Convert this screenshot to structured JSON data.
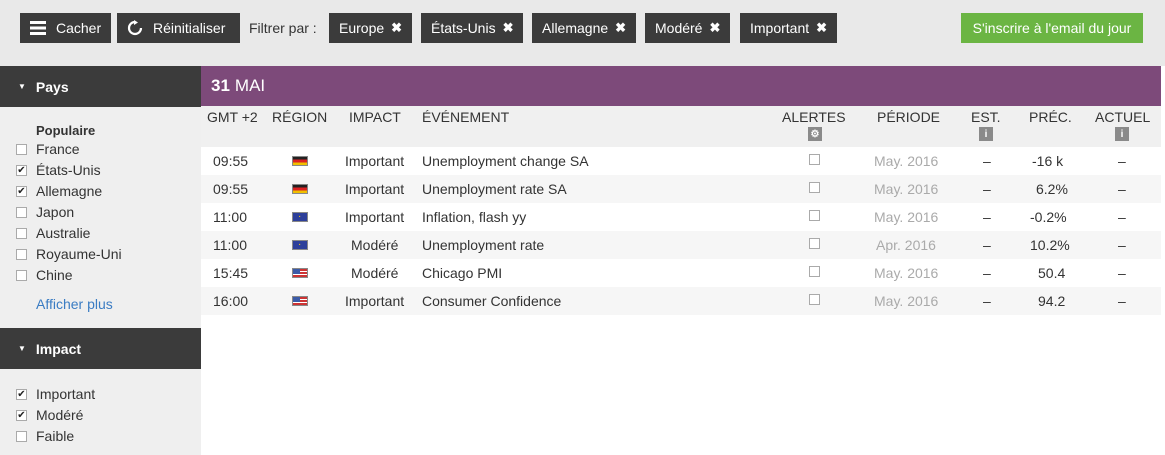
{
  "toolbar": {
    "hide_label": "Cacher",
    "reset_label": "Réinitialiser",
    "filter_label": "Filtrer par :",
    "chips": [
      {
        "label": "Europe"
      },
      {
        "label": "États-Unis"
      },
      {
        "label": "Allemagne"
      },
      {
        "label": "Modéré"
      },
      {
        "label": "Important"
      }
    ],
    "chip_close": "✖",
    "subscribe_label": "S'inscrire à l'email du jour"
  },
  "sidebar": {
    "country_section": {
      "title": "Pays",
      "group_title": "Populaire",
      "items": [
        {
          "label": "France",
          "checked": false
        },
        {
          "label": "États-Unis",
          "checked": true
        },
        {
          "label": "Allemagne",
          "checked": true
        },
        {
          "label": "Japon",
          "checked": false
        },
        {
          "label": "Australie",
          "checked": false
        },
        {
          "label": "Royaume-Uni",
          "checked": false
        },
        {
          "label": "Chine",
          "checked": false
        }
      ],
      "more_label": "Afficher plus"
    },
    "impact_section": {
      "title": "Impact",
      "items": [
        {
          "label": "Important",
          "checked": true
        },
        {
          "label": "Modéré",
          "checked": true
        },
        {
          "label": "Faible",
          "checked": false
        }
      ]
    }
  },
  "calendar": {
    "date_day": "31",
    "date_month": "MAI",
    "columns": {
      "time": "GMT +2",
      "region": "RÉGION",
      "impact": "IMPACT",
      "event": "ÉVÉNEMENT",
      "alerts": "ALERTES",
      "period": "PÉRIODE",
      "est": "EST.",
      "prev": "PRÉC.",
      "actual": "ACTUEL"
    },
    "rows": [
      {
        "time": "09:55",
        "flag": "de",
        "impact": "Important",
        "event": "Unemployment change SA",
        "period": "May. 2016",
        "est": "–",
        "prev": "-16 k",
        "actual": "–"
      },
      {
        "time": "09:55",
        "flag": "de",
        "impact": "Important",
        "event": "Unemployment rate SA",
        "period": "May. 2016",
        "est": "–",
        "prev": "6.2%",
        "actual": "–"
      },
      {
        "time": "11:00",
        "flag": "eu",
        "impact": "Important",
        "event": "Inflation, flash yy",
        "period": "May. 2016",
        "est": "–",
        "prev": "-0.2%",
        "actual": "–"
      },
      {
        "time": "11:00",
        "flag": "eu",
        "impact": "Modéré",
        "event": "Unemployment rate",
        "period": "Apr. 2016",
        "est": "–",
        "prev": "10.2%",
        "actual": "–"
      },
      {
        "time": "15:45",
        "flag": "us",
        "impact": "Modéré",
        "event": "Chicago PMI",
        "period": "May. 2016",
        "est": "–",
        "prev": "50.4",
        "actual": "–"
      },
      {
        "time": "16:00",
        "flag": "us",
        "impact": "Important",
        "event": "Consumer Confidence",
        "period": "May. 2016",
        "est": "–",
        "prev": "94.2",
        "actual": "–"
      }
    ]
  },
  "colors": {
    "date_bar": "#7d4a7a",
    "subscribe": "#6bb543",
    "dark_button": "#3b3b3b",
    "link": "#3a7cc3"
  }
}
